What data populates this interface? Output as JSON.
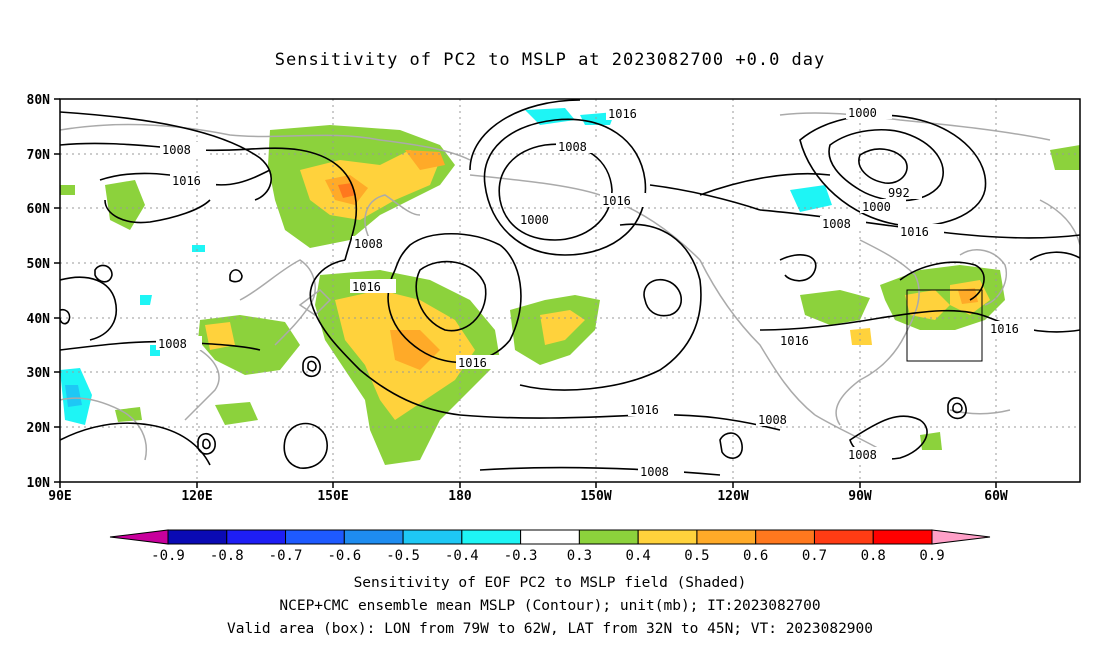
{
  "title": "Sensitivity of PC2 to MSLP at 2023082700 +0.0 day",
  "lat_labels": [
    "80N",
    "70N",
    "60N",
    "50N",
    "40N",
    "30N",
    "20N",
    "10N"
  ],
  "lon_labels": [
    "90E",
    "120E",
    "150E",
    "180",
    "150W",
    "120W",
    "90W",
    "60W"
  ],
  "contour_labels": {
    "c1016_a": "1016",
    "c1008_a": "1008",
    "c1016_b": "1016",
    "c1008_b": "1008",
    "c1000_a": "1000",
    "c1016_c": "1016",
    "c1008_c": "1008",
    "c1016_d": "1016",
    "c1016_e": "1016",
    "c1008_d": "1008",
    "c1016_f": "1016",
    "c1008_e": "1008",
    "c1008_f": "1008",
    "c1000_b": "1000",
    "c992": "992",
    "c1000_c": "1000",
    "c1008_g": "1008",
    "c1016_g": "1016",
    "c1016_h": "1016",
    "c1016_i": "1016",
    "c1008_h": "1008"
  },
  "colorbar": {
    "labels": [
      "-0.9",
      "-0.8",
      "-0.7",
      "-0.6",
      "-0.5",
      "-0.4",
      "-0.3",
      "0.3",
      "0.4",
      "0.5",
      "0.6",
      "0.7",
      "0.8",
      "0.9"
    ],
    "colors": [
      "#c8009c",
      "#0a0ab4",
      "#1e1ef5",
      "#1e5aff",
      "#1e8cf0",
      "#1ec8f5",
      "#1ef5f5",
      "#ffffff",
      "#8cd23c",
      "#ffd23c",
      "#ffaa28",
      "#ff781e",
      "#ff3c14",
      "#ff0000",
      "#ffa0c8"
    ]
  },
  "captions": {
    "line1": "Sensitivity of EOF PC2 to MSLP field (Shaded)",
    "line2": "NCEP+CMC ensemble mean MSLP (Contour); unit(mb); IT:2023082700",
    "line3": "Valid area (box): LON from 79W to 62W, LAT from 32N to 45N; VT: 2023082900"
  },
  "valid_box": {
    "lon_min": "79W",
    "lon_max": "62W",
    "lat_min": "32N",
    "lat_max": "45N"
  }
}
